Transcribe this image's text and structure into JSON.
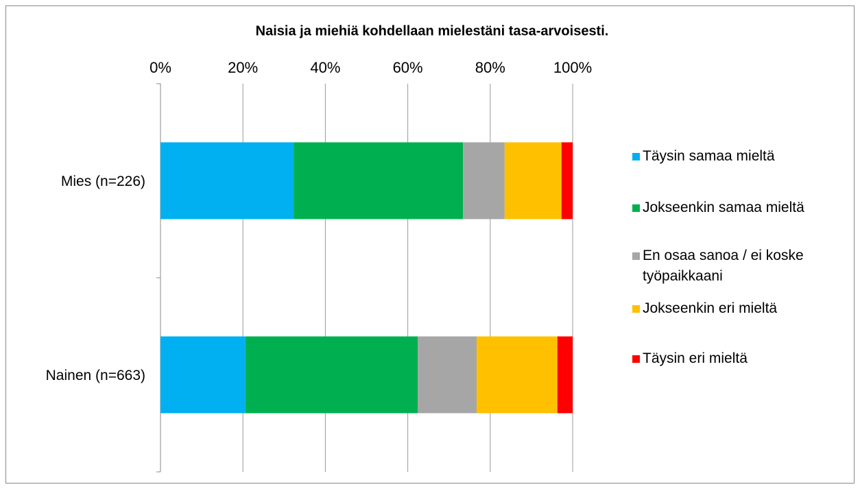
{
  "chart_data": {
    "type": "stacked-bar-horizontal",
    "title": "Naisia ja miehiä kohdellaan mielestäni tasa-arvoisesti.",
    "categories": [
      "Mies (n=226)",
      "Nainen (n=663)"
    ],
    "series": [
      {
        "name": "Täysin samaa mieltä",
        "color": "#00b0f0",
        "values": [
          32.3,
          20.6
        ]
      },
      {
        "name": "Jokseenkin samaa mieltä",
        "color": "#00b050",
        "values": [
          41.1,
          41.8
        ]
      },
      {
        "name": "En osaa sanoa / ei koske työpaikkaani",
        "color": "#a6a6a6",
        "values": [
          10.1,
          14.3
        ]
      },
      {
        "name": "Jokseenkin eri mieltä",
        "color": "#ffc000",
        "values": [
          13.8,
          19.6
        ]
      },
      {
        "name": "Täysin eri mieltä",
        "color": "#ff0000",
        "values": [
          2.7,
          3.7
        ]
      }
    ],
    "xlim": [
      0,
      100
    ],
    "xticks": [
      {
        "value": 0,
        "label": "0%"
      },
      {
        "value": 20,
        "label": "20%"
      },
      {
        "value": 40,
        "label": "40%"
      },
      {
        "value": 60,
        "label": "60%"
      },
      {
        "value": 80,
        "label": "80%"
      },
      {
        "value": 100,
        "label": "100%"
      }
    ],
    "grid": true,
    "legend": "right"
  }
}
